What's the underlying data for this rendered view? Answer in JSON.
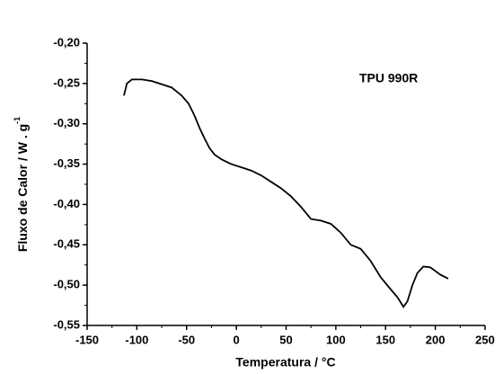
{
  "chart_data": {
    "type": "line",
    "annotation": "TPU 990R",
    "xlabel": "Temperatura / °C",
    "ylabel": "Fluxo de Calor / W . g",
    "ylabel_sup": "-1",
    "x": [
      -113,
      -110,
      -105,
      -95,
      -85,
      -75,
      -65,
      -55,
      -48,
      -42,
      -37,
      -32,
      -27,
      -22,
      -15,
      -5,
      5,
      15,
      25,
      35,
      45,
      55,
      65,
      75,
      85,
      95,
      105,
      115,
      125,
      135,
      145,
      155,
      162,
      168,
      172,
      177,
      182,
      188,
      195,
      205,
      213
    ],
    "series": [
      {
        "color": "#000000",
        "values": [
          -0.265,
          -0.25,
          -0.245,
          -0.245,
          -0.247,
          -0.251,
          -0.255,
          -0.265,
          -0.275,
          -0.29,
          -0.305,
          -0.318,
          -0.33,
          -0.338,
          -0.344,
          -0.35,
          -0.354,
          -0.358,
          -0.364,
          -0.372,
          -0.38,
          -0.39,
          -0.403,
          -0.418,
          -0.42,
          -0.424,
          -0.435,
          -0.45,
          -0.455,
          -0.47,
          -0.49,
          -0.505,
          -0.515,
          -0.527,
          -0.52,
          -0.5,
          -0.485,
          -0.477,
          -0.478,
          -0.487,
          -0.492
        ]
      }
    ],
    "xlim": [
      -150,
      250
    ],
    "xticks": [
      -150,
      -100,
      -50,
      0,
      50,
      100,
      150,
      200,
      250
    ],
    "xminor": [
      -125,
      -75,
      -25,
      25,
      75,
      125,
      175,
      225
    ],
    "ylim": [
      -0.55,
      -0.2
    ],
    "yticks": [
      {
        "value": -0.55,
        "label": "-0,55"
      },
      {
        "value": -0.5,
        "label": "-0,50"
      },
      {
        "value": -0.45,
        "label": "-0,45"
      },
      {
        "value": -0.4,
        "label": "-0,40"
      },
      {
        "value": -0.35,
        "label": "-0,35"
      },
      {
        "value": -0.3,
        "label": "-0,30"
      },
      {
        "value": -0.25,
        "label": "-0,25"
      },
      {
        "value": -0.2,
        "label": "-0,20"
      }
    ],
    "yminor": [
      -0.525,
      -0.475,
      -0.425,
      -0.375,
      -0.325,
      -0.275,
      -0.225
    ]
  }
}
